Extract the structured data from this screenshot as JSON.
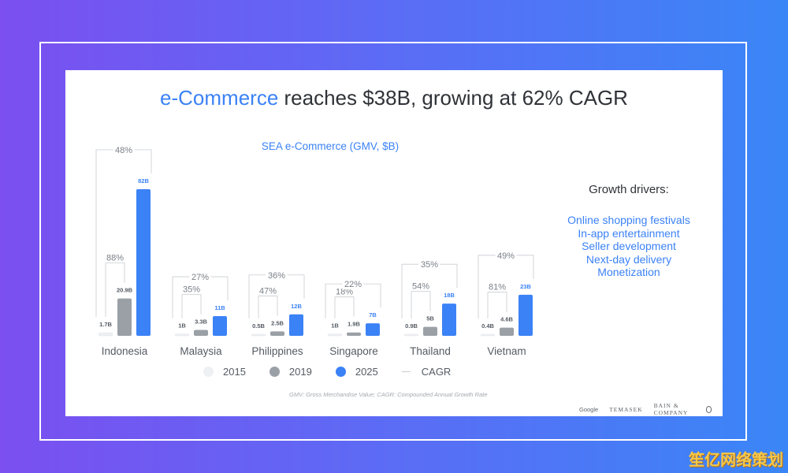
{
  "slide": {
    "title_accent": "e-Commerce",
    "title_rest": " reaches $38B, growing at 62% CAGR",
    "footnote": "GMV: Gross Merchandise Value; CAGR: Compounded Annual Growth Rate",
    "logos": [
      "Google",
      "TEMASEK",
      "BAIN & COMPANY"
    ]
  },
  "drivers": {
    "heading": "Growth drivers:",
    "items": [
      "Online shopping festivals",
      "In-app entertainment",
      "Seller development",
      "Next-day delivery",
      "Monetization"
    ]
  },
  "legend": {
    "items": [
      {
        "label": "2015",
        "color": "#eef0f3"
      },
      {
        "label": "2019",
        "color": "#9aa0a6"
      },
      {
        "label": "2025",
        "color": "#3b82f6"
      },
      {
        "label": "CAGR",
        "color": "#c9ccd1"
      }
    ]
  },
  "watermark": "笙亿网络策划",
  "chart_data": {
    "type": "bar",
    "title": "SEA e-Commerce (GMV, $B)",
    "categories": [
      "Indonesia",
      "Malaysia",
      "Philippines",
      "Singapore",
      "Thailand",
      "Vietnam"
    ],
    "series": [
      {
        "name": "2015",
        "color": "#eef0f3",
        "values": [
          1.7,
          1,
          0.5,
          1,
          0.9,
          0.4
        ],
        "labels": [
          "1.7B",
          "1B",
          "0.5B",
          "1B",
          "0.9B",
          "0.4B"
        ]
      },
      {
        "name": "2019",
        "color": "#9aa0a6",
        "values": [
          20.9,
          3.3,
          2.5,
          1.9,
          5,
          4.6
        ],
        "labels": [
          "20.9B",
          "3.3B",
          "2.5B",
          "1.9B",
          "5B",
          "4.6B"
        ]
      },
      {
        "name": "2025",
        "color": "#3b82f6",
        "values": [
          82,
          11,
          12,
          7,
          18,
          23
        ],
        "labels": [
          "82B",
          "11B",
          "12B",
          "7B",
          "18B",
          "23B"
        ]
      }
    ],
    "cagr_2015_2019": [
      "88%",
      "35%",
      "47%",
      "18%",
      "54%",
      "81%"
    ],
    "cagr_2015_2025": [
      "48%",
      "27%",
      "36%",
      "22%",
      "35%",
      "49%"
    ],
    "ylim": [
      0,
      82
    ]
  }
}
